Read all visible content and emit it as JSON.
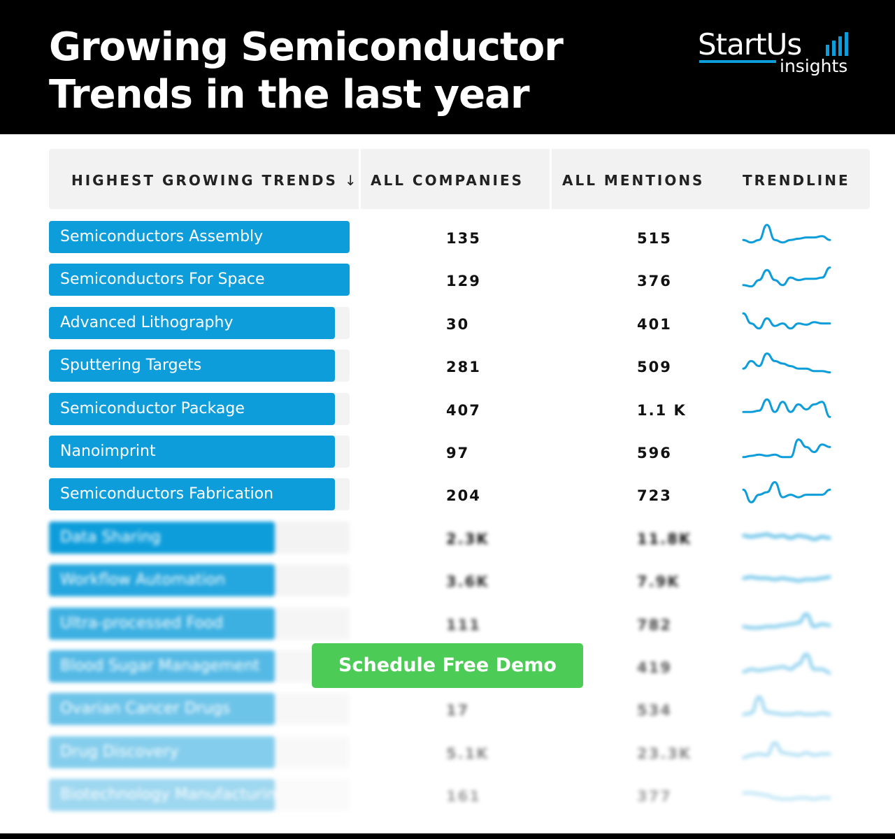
{
  "title_line1": "Growing Semiconductor",
  "title_line2": "Trends in the last year",
  "logo": {
    "main": "StartUs",
    "sub": "insights"
  },
  "colors": {
    "accent": "#0d9ddb",
    "cta": "#4ccb56",
    "header_bg": "#f2f2f2"
  },
  "table": {
    "headers": [
      "HIGHEST GROWING TRENDS",
      "ALL COMPANIES",
      "ALL MENTIONS",
      "TRENDLINE"
    ],
    "sort_icon": "arrow-down-icon",
    "rows": [
      {
        "name": "Semiconductors Assembly",
        "companies": "135",
        "mentions": "515",
        "fill": 1.0,
        "trend": [
          0.3,
          0.2,
          0.3,
          0.9,
          0.3,
          0.2,
          0.3,
          0.35,
          0.4,
          0.4,
          0.45,
          0.3
        ],
        "blurred": false
      },
      {
        "name": "Semiconductors For Space",
        "companies": "129",
        "mentions": "376",
        "fill": 1.0,
        "trend": [
          0.2,
          0.15,
          0.4,
          0.8,
          0.4,
          0.2,
          0.5,
          0.4,
          0.45,
          0.45,
          0.5,
          0.9
        ],
        "blurred": false
      },
      {
        "name": "Advanced Lithography",
        "companies": "30",
        "mentions": "401",
        "fill": 0.95,
        "trend": [
          0.8,
          0.4,
          0.2,
          0.6,
          0.3,
          0.4,
          0.2,
          0.4,
          0.35,
          0.45,
          0.4,
          0.4
        ],
        "blurred": false
      },
      {
        "name": "Sputtering Targets",
        "companies": "281",
        "mentions": "509",
        "fill": 0.95,
        "trend": [
          0.3,
          0.6,
          0.4,
          0.9,
          0.6,
          0.5,
          0.4,
          0.3,
          0.3,
          0.2,
          0.2,
          0.15
        ],
        "blurred": false
      },
      {
        "name": "Semiconductor Package",
        "companies": "407",
        "mentions": "1.1 K",
        "fill": 0.95,
        "trend": [
          0.3,
          0.3,
          0.35,
          0.8,
          0.3,
          0.7,
          0.3,
          0.6,
          0.4,
          0.6,
          0.7,
          0.1
        ],
        "blurred": false
      },
      {
        "name": "Nanoimprint",
        "companies": "97",
        "mentions": "596",
        "fill": 0.95,
        "trend": [
          0.2,
          0.25,
          0.3,
          0.25,
          0.3,
          0.2,
          0.2,
          0.9,
          0.6,
          0.4,
          0.7,
          0.6
        ],
        "blurred": false
      },
      {
        "name": "Semiconductors Fabrication",
        "companies": "204",
        "mentions": "723",
        "fill": 0.95,
        "trend": [
          0.6,
          0.1,
          0.4,
          0.5,
          0.9,
          0.3,
          0.4,
          0.3,
          0.4,
          0.4,
          0.4,
          0.6
        ],
        "blurred": false
      },
      {
        "name": "Data Sharing",
        "companies": "2.3K",
        "mentions": "11.8K",
        "fill": 0.75,
        "trend": [
          0.5,
          0.45,
          0.5,
          0.55,
          0.45,
          0.5,
          0.4,
          0.5,
          0.45,
          0.35,
          0.45,
          0.4
        ],
        "blurred": true
      },
      {
        "name": "Workflow Automation",
        "companies": "3.6K",
        "mentions": "7.9K",
        "fill": 0.75,
        "trend": [
          0.5,
          0.55,
          0.5,
          0.5,
          0.45,
          0.5,
          0.45,
          0.4,
          0.45,
          0.45,
          0.5,
          0.55
        ],
        "blurred": true
      },
      {
        "name": "Ultra-processed Food",
        "companies": "111",
        "mentions": "782",
        "fill": 0.75,
        "trend": [
          0.3,
          0.25,
          0.25,
          0.3,
          0.3,
          0.35,
          0.4,
          0.45,
          0.8,
          0.3,
          0.4,
          0.35
        ],
        "blurred": true
      },
      {
        "name": "Blood Sugar Management",
        "companies": "",
        "mentions": "419",
        "fill": 0.75,
        "trend": [
          0.2,
          0.3,
          0.25,
          0.3,
          0.35,
          0.4,
          0.3,
          0.5,
          0.9,
          0.3,
          0.3,
          0.15
        ],
        "blurred": true
      },
      {
        "name": "Ovarian Cancer Drugs",
        "companies": "17",
        "mentions": "534",
        "fill": 0.75,
        "trend": [
          0.2,
          0.25,
          0.9,
          0.3,
          0.25,
          0.2,
          0.2,
          0.25,
          0.2,
          0.2,
          0.25,
          0.2
        ],
        "blurred": true
      },
      {
        "name": "Drug Discovery",
        "companies": "5.1K",
        "mentions": "23.3K",
        "fill": 0.75,
        "trend": [
          0.2,
          0.3,
          0.35,
          0.3,
          0.8,
          0.4,
          0.35,
          0.3,
          0.4,
          0.3,
          0.35,
          0.35
        ],
        "blurred": true
      },
      {
        "name": "Biotechnology Manufacturing",
        "companies": "161",
        "mentions": "377",
        "fill": 0.75,
        "trend": [
          0.5,
          0.5,
          0.45,
          0.4,
          0.3,
          0.25,
          0.25,
          0.3,
          0.3,
          0.25,
          0.3,
          0.3
        ],
        "blurred": true
      }
    ]
  },
  "cta": "Schedule Free Demo"
}
